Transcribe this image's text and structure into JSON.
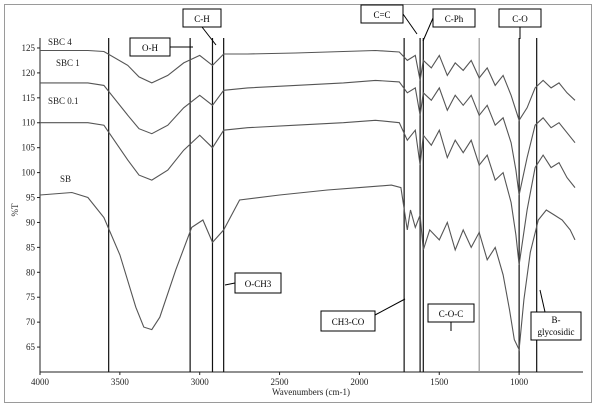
{
  "chart_data": {
    "type": "line",
    "xlabel": "Wavenumbers (cm-1)",
    "ylabel": "%T",
    "xlim": [
      4000,
      600
    ],
    "ylim": [
      60,
      127
    ],
    "x_ticks": [
      "4000",
      "3500",
      "3000",
      "2500",
      "2000",
      "1500",
      "1000"
    ],
    "y_ticks": [
      "65",
      "70",
      "75",
      "80",
      "85",
      "90",
      "95",
      "100",
      "105",
      "110",
      "115",
      "120",
      "125"
    ],
    "series": [
      {
        "name": "SBC 4",
        "x": [
          4000,
          3700,
          3600,
          3450,
          3380,
          3300,
          3200,
          3100,
          3000,
          2920,
          2850,
          2700,
          2400,
          2100,
          1900,
          1750,
          1700,
          1650,
          1620,
          1600,
          1550,
          1500,
          1450,
          1400,
          1350,
          1300,
          1250,
          1200,
          1150,
          1100,
          1050,
          1020,
          1000,
          950,
          900,
          850,
          800,
          750,
          700,
          650
        ],
        "y": [
          124.5,
          124.5,
          124.3,
          121.5,
          119.2,
          118.0,
          119.5,
          122.0,
          123.5,
          121.5,
          123.8,
          123.8,
          124.0,
          124.3,
          124.5,
          124.2,
          122.5,
          123.5,
          118.5,
          122.5,
          121.0,
          123.5,
          119.5,
          122.0,
          120.5,
          122.5,
          119.0,
          121.0,
          117.5,
          119.5,
          115.5,
          112.5,
          110.5,
          113.0,
          117.0,
          118.5,
          117.0,
          118.0,
          116.0,
          114.5
        ]
      },
      {
        "name": "SBC 1",
        "x": [
          4000,
          3700,
          3600,
          3450,
          3380,
          3300,
          3200,
          3100,
          3000,
          2920,
          2850,
          2700,
          2400,
          2100,
          1900,
          1750,
          1700,
          1650,
          1620,
          1600,
          1550,
          1500,
          1450,
          1400,
          1350,
          1300,
          1250,
          1200,
          1150,
          1100,
          1050,
          1020,
          1000,
          950,
          900,
          850,
          800,
          750,
          700,
          650
        ],
        "y": [
          118.0,
          118.0,
          117.5,
          111.5,
          108.8,
          107.8,
          109.5,
          113.0,
          115.5,
          113.5,
          116.5,
          117.0,
          117.5,
          118.0,
          118.5,
          118.2,
          116.0,
          117.0,
          111.5,
          116.0,
          114.5,
          117.0,
          112.5,
          115.5,
          113.5,
          115.5,
          111.5,
          113.5,
          109.5,
          111.0,
          106.0,
          100.5,
          95.5,
          103.0,
          109.5,
          111.0,
          109.0,
          110.0,
          108.0,
          106.0
        ]
      },
      {
        "name": "SBC 0.1",
        "x": [
          4000,
          3700,
          3600,
          3450,
          3380,
          3300,
          3200,
          3100,
          3000,
          2920,
          2850,
          2700,
          2400,
          2100,
          1900,
          1750,
          1700,
          1650,
          1620,
          1600,
          1550,
          1500,
          1450,
          1400,
          1350,
          1300,
          1250,
          1200,
          1150,
          1100,
          1050,
          1020,
          1000,
          950,
          900,
          850,
          800,
          750,
          700,
          650
        ],
        "y": [
          110.0,
          110.0,
          109.5,
          102.5,
          99.5,
          98.5,
          100.5,
          104.5,
          107.5,
          105.0,
          108.5,
          109.0,
          109.5,
          110.0,
          110.5,
          110.0,
          106.5,
          108.5,
          101.5,
          107.5,
          105.5,
          108.5,
          103.0,
          106.5,
          104.0,
          106.5,
          101.5,
          103.5,
          98.5,
          100.0,
          94.0,
          87.5,
          81.5,
          92.5,
          101.0,
          103.5,
          101.0,
          102.0,
          99.0,
          97.0
        ]
      },
      {
        "name": "SB",
        "x": [
          4000,
          3800,
          3700,
          3600,
          3500,
          3400,
          3350,
          3300,
          3250,
          3150,
          3050,
          2980,
          2920,
          2850,
          2750,
          2500,
          2200,
          2000,
          1800,
          1740,
          1700,
          1680,
          1650,
          1620,
          1600,
          1560,
          1500,
          1450,
          1400,
          1350,
          1300,
          1250,
          1200,
          1150,
          1100,
          1060,
          1030,
          1000,
          970,
          930,
          880,
          830,
          780,
          730,
          680,
          650
        ],
        "y": [
          95.5,
          96.0,
          95.0,
          91.0,
          83.5,
          73.0,
          69.0,
          68.5,
          71.0,
          80.5,
          89.0,
          90.5,
          86.0,
          88.5,
          94.5,
          95.5,
          96.5,
          97.0,
          97.5,
          97.0,
          88.5,
          92.5,
          89.0,
          91.5,
          84.5,
          88.5,
          86.5,
          90.0,
          84.5,
          88.5,
          85.0,
          88.0,
          82.5,
          85.0,
          79.5,
          72.5,
          66.5,
          64.5,
          74.5,
          84.0,
          90.5,
          92.5,
          91.5,
          90.5,
          88.5,
          86.5
        ]
      }
    ],
    "band_markers": [
      {
        "label": "O-H",
        "x": 3300
      },
      {
        "label": "C-H",
        "x": 2920
      },
      {
        "label": "O-CH3",
        "x": 2850
      },
      {
        "label": "CH3-CO",
        "x": 1720
      },
      {
        "label": "C=C",
        "x": 1620
      },
      {
        "label": "C-Ph",
        "x": 1600
      },
      {
        "label": "C-O-C",
        "x": 1250
      },
      {
        "label": "C-O",
        "x": 1000
      },
      {
        "label": "B-glycosidic",
        "x": 890
      }
    ],
    "vertical_lines_x": [
      3570,
      3060,
      2920,
      2850,
      1720,
      1620,
      1600,
      1250,
      1000,
      890
    ],
    "grid": false,
    "legend": "inline labels"
  },
  "labels": {
    "series_SBC4": "SBC 4",
    "series_SBC1": "SBC 1",
    "series_SBC01": "SBC 0.1",
    "series_SB": "SB",
    "OH": "O-H",
    "CH": "C-H",
    "CC": "C=C",
    "CPh": "C-Ph",
    "CO": "C-O",
    "OCH3": "O-CH3",
    "CH3CO": "CH3-CO",
    "COC": "C-O-C",
    "Bgly1": "B-",
    "Bgly2": "glycosidic"
  }
}
